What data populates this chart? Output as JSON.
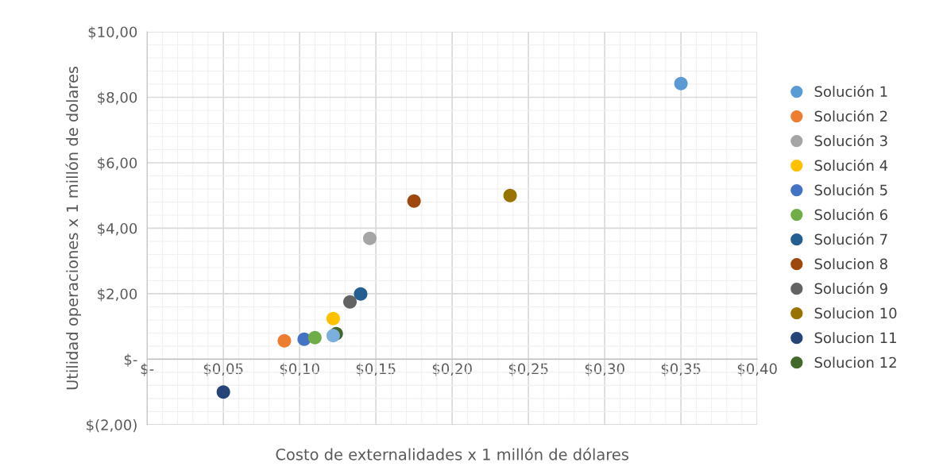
{
  "chart_data": {
    "type": "scatter",
    "xlabel": "Costo de externalidades x 1 millón de dólares",
    "ylabel": "Utilidad operaciones x 1 millón de dolares",
    "xlim": [
      0,
      0.4
    ],
    "ylim": [
      -2,
      10
    ],
    "xticks": [
      {
        "value": 0,
        "label": "$-"
      },
      {
        "value": 0.05,
        "label": "$0,05"
      },
      {
        "value": 0.1,
        "label": "$0,10"
      },
      {
        "value": 0.15,
        "label": "$0,15"
      },
      {
        "value": 0.2,
        "label": "$0,20"
      },
      {
        "value": 0.25,
        "label": "$0,25"
      },
      {
        "value": 0.3,
        "label": "$0,30"
      },
      {
        "value": 0.35,
        "label": "$0,35"
      },
      {
        "value": 0.4,
        "label": "$0,40"
      }
    ],
    "yticks": [
      {
        "value": -2,
        "label": "$(2,00)"
      },
      {
        "value": 0,
        "label": "$-"
      },
      {
        "value": 2,
        "label": "$2,00"
      },
      {
        "value": 4,
        "label": "$4,00"
      },
      {
        "value": 6,
        "label": "$6,00"
      },
      {
        "value": 8,
        "label": "$8,00"
      },
      {
        "value": 10,
        "label": "$10,00"
      }
    ],
    "grid": true,
    "legend": "right",
    "marker": "circle",
    "series": [
      {
        "name": "Solución 1",
        "color": "#5b9bd5",
        "x": [
          0.35
        ],
        "values": [
          8.42
        ]
      },
      {
        "name": "Solución 2",
        "color": "#ed7d31",
        "x": [
          0.09
        ],
        "values": [
          0.56
        ]
      },
      {
        "name": "Solución 3",
        "color": "#a5a5a5",
        "x": [
          0.146
        ],
        "values": [
          3.69
        ]
      },
      {
        "name": "Solución 4",
        "color": "#ffc000",
        "x": [
          0.122
        ],
        "values": [
          1.24
        ]
      },
      {
        "name": "Solución 5",
        "color": "#4472c4",
        "x": [
          0.103
        ],
        "values": [
          0.61
        ]
      },
      {
        "name": "Solución 6",
        "color": "#70ad47",
        "x": [
          0.11
        ],
        "values": [
          0.66
        ]
      },
      {
        "name": "Solución 7",
        "color": "#255e91",
        "x": [
          0.14
        ],
        "values": [
          1.99
        ]
      },
      {
        "name": "Solucion 8",
        "color": "#9e480e",
        "x": [
          0.175
        ],
        "values": [
          4.83
        ]
      },
      {
        "name": "Solución 9",
        "color": "#636363",
        "x": [
          0.133
        ],
        "values": [
          1.75
        ]
      },
      {
        "name": "Solucion 10",
        "color": "#997300",
        "x": [
          0.238
        ],
        "values": [
          5.0
        ]
      },
      {
        "name": "Solucion 11",
        "color": "#264478",
        "x": [
          0.05
        ],
        "values": [
          -1.0
        ]
      },
      {
        "name": "Solucion 12",
        "color": "#43682b",
        "x": [
          0.124
        ],
        "values": [
          0.78
        ]
      },
      {
        "color": "#7cafdd",
        "x": [
          0.122
        ],
        "values": [
          0.72
        ]
      }
    ]
  }
}
